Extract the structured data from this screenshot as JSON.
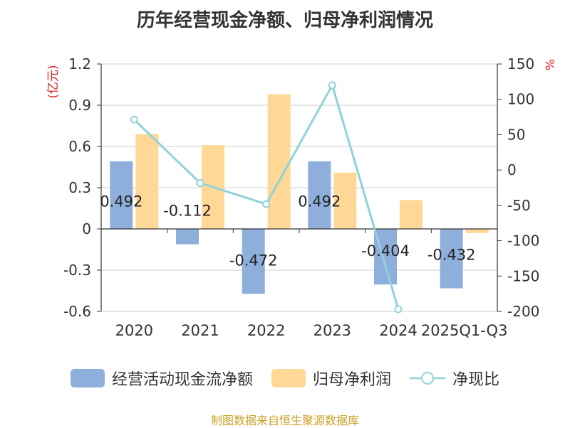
{
  "title": "历年经营现金净额、归母净利润情况",
  "footer": "制图数据来自恒生聚源数据库",
  "colors": {
    "cash": "#8eaedb",
    "profit": "#ffd898",
    "ratio": "#8fd3d8",
    "grid": "#cccccc",
    "axis": "#333333",
    "unit": "#e02020",
    "footer": "#c9a227"
  },
  "chart_data": {
    "type": "bar",
    "categories": [
      "2020",
      "2021",
      "2022",
      "2023",
      "2024",
      "2025Q1-Q3"
    ],
    "series": [
      {
        "name": "经营活动现金流净额",
        "type": "bar",
        "axis": "left",
        "values": [
          0.492,
          -0.112,
          -0.472,
          0.492,
          -0.404,
          -0.432
        ],
        "labels": [
          "0.492",
          "-0.112",
          "-0.472",
          "0.492",
          "-0.404",
          "-0.432"
        ]
      },
      {
        "name": "归母净利润",
        "type": "bar",
        "axis": "left",
        "values": [
          0.69,
          0.61,
          0.98,
          0.41,
          0.21,
          -0.03
        ]
      },
      {
        "name": "净现比",
        "type": "line",
        "axis": "right",
        "values": [
          71.3,
          -18.4,
          -48.2,
          120.0,
          -197.0,
          null
        ]
      }
    ],
    "left_axis": {
      "unit": "(亿元)",
      "ylim": [
        -0.6,
        1.2
      ],
      "ticks": [
        1.2,
        0.9,
        0.6,
        0.3,
        0,
        -0.3,
        -0.6
      ],
      "tick_labels": [
        "1.2",
        "0.9",
        "0.6",
        "0.3",
        "0",
        "-0.3",
        "-0.6"
      ]
    },
    "right_axis": {
      "unit": "%",
      "ylim": [
        -200,
        150
      ],
      "ticks": [
        150,
        100,
        50,
        0,
        -50,
        -100,
        -150,
        -200
      ],
      "tick_labels": [
        "150",
        "100",
        "50",
        "0",
        "-50",
        "-100",
        "-150",
        "-200"
      ]
    },
    "grid": true,
    "legend_position": "bottom"
  }
}
